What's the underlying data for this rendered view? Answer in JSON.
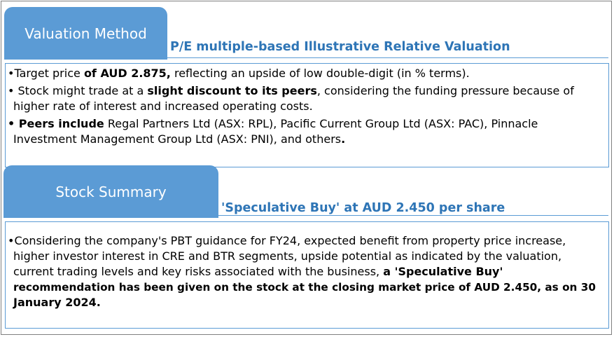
{
  "valuation": {
    "tab_label": "Valuation Method",
    "heading": "P/E multiple-based Illustrative Relative Valuation",
    "bullet1": {
      "prefix": "•Target price ",
      "bold": "of AUD 2.875,",
      "suffix": " reflecting an upside of low double-digit (in % terms)."
    },
    "bullet2": {
      "prefix": "• Stock might trade at a ",
      "bold": "slight discount to its peers",
      "suffix": ", considering the funding pressure because of",
      "line2": "higher rate of interest and increased operating costs."
    },
    "bullet3": {
      "bold": "• Peers include",
      "suffix": " Regal Partners Ltd (ASX: RPL), Pacific Current Group Ltd (ASX: PAC), Pinnacle",
      "line2": "Investment Management Group Ltd (ASX: PNI), and others",
      "line2_end": "."
    }
  },
  "summary": {
    "tab_label": "Stock Summary",
    "heading": "'Speculative Buy' at AUD 2.450 per share",
    "line1": "•Considering the company's PBT guidance for FY24, expected benefit from property price increase,",
    "line2": "higher investor interest in CRE and BTR segments, upside potential as indicated by the valuation,",
    "line3_prefix": "current trading levels and key risks associated with the business, ",
    "line3_bold": "a  'Speculative Buy'",
    "line4": "recommendation has been given on the stock at the closing market price of AUD 2.450, as on 30",
    "line5": "January 2024."
  },
  "colors": {
    "tab_blue": "#5b9bd5",
    "heading_blue": "#2e75b6",
    "border_gray": "#808080"
  }
}
